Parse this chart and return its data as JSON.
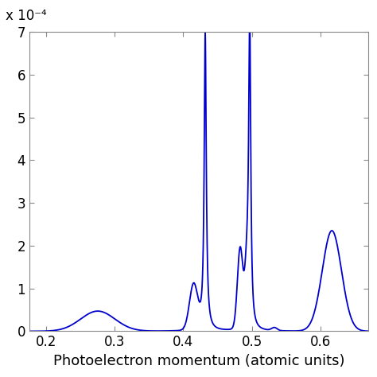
{
  "line_color": "#0000CC",
  "line_width": 1.3,
  "xlim": [
    0.175,
    0.67
  ],
  "ylim": [
    0,
    0.0007
  ],
  "xticks": [
    0.2,
    0.3,
    0.4,
    0.5,
    0.6
  ],
  "yticks": [
    0,
    0.0001,
    0.0002,
    0.0003,
    0.0004,
    0.0005,
    0.0006,
    0.0007
  ],
  "ytick_labels": [
    "0",
    "1",
    "2",
    "3",
    "4",
    "5",
    "6",
    "7"
  ],
  "xlabel": "Photoelectron momentum (atomic units)",
  "scale_label": "x 10⁻⁴",
  "background_color": "#ffffff",
  "tick_fontsize": 12,
  "label_fontsize": 13
}
